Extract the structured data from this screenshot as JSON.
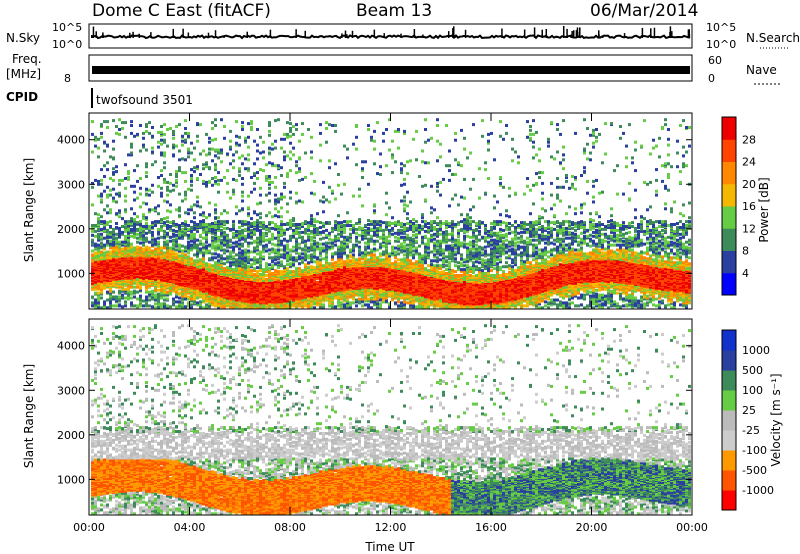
{
  "header": {
    "station": "Dome C East (fitACF)",
    "beam": "Beam 13",
    "date": "06/Mar/2014"
  },
  "strips": {
    "nsky_label": "N.Sky",
    "nsky_ticks": [
      "10^5",
      "10^0"
    ],
    "nsearch_label": "N.Search",
    "freq_label": "Freq.",
    "freq_unit": "[MHz]",
    "freq_ticks": [
      "8"
    ],
    "nave_label": "Nave",
    "nave_ticks": [
      "60",
      "0"
    ],
    "cpid_label": "CPID",
    "cpid_value": "twofsound 3501"
  },
  "colors": {
    "power_scale": [
      "#0000ff",
      "#2a3fa0",
      "#3d8a5a",
      "#66cc44",
      "#f5b800",
      "#ff8800",
      "#ff4400",
      "#ee0000"
    ],
    "velocity_scale": [
      "#ff0000",
      "#ff5500",
      "#ff9900",
      "#cccccc",
      "#bbbbbb",
      "#66cc44",
      "#3d8a5a",
      "#2a3fa0",
      "#1133cc"
    ]
  },
  "chart_data": [
    {
      "type": "heatmap",
      "name": "power-panel",
      "ylabel": "Slant Range [km]",
      "xlabel": "",
      "x_ticks": [
        "00:00",
        "04:00",
        "08:00",
        "12:00",
        "16:00",
        "20:00",
        "00:00"
      ],
      "y_ticks": [
        1000,
        2000,
        3000,
        4000
      ],
      "ylim": [
        200,
        4600
      ],
      "colorbar_label": "Power [dB]",
      "colorbar_ticks": [
        4,
        8,
        12,
        16,
        20,
        24,
        28
      ]
    },
    {
      "type": "heatmap",
      "name": "velocity-panel",
      "ylabel": "Slant Range [km]",
      "xlabel": "Time UT",
      "x_ticks": [
        "00:00",
        "04:00",
        "08:00",
        "12:00",
        "16:00",
        "20:00",
        "00:00"
      ],
      "y_ticks": [
        1000,
        2000,
        3000,
        4000
      ],
      "ylim": [
        200,
        4600
      ],
      "colorbar_label": "Velocity [m s⁻¹]",
      "colorbar_ticks": [
        "1000",
        "500",
        "100",
        "25",
        "-25",
        "-100",
        "-500",
        "-1000"
      ]
    }
  ]
}
